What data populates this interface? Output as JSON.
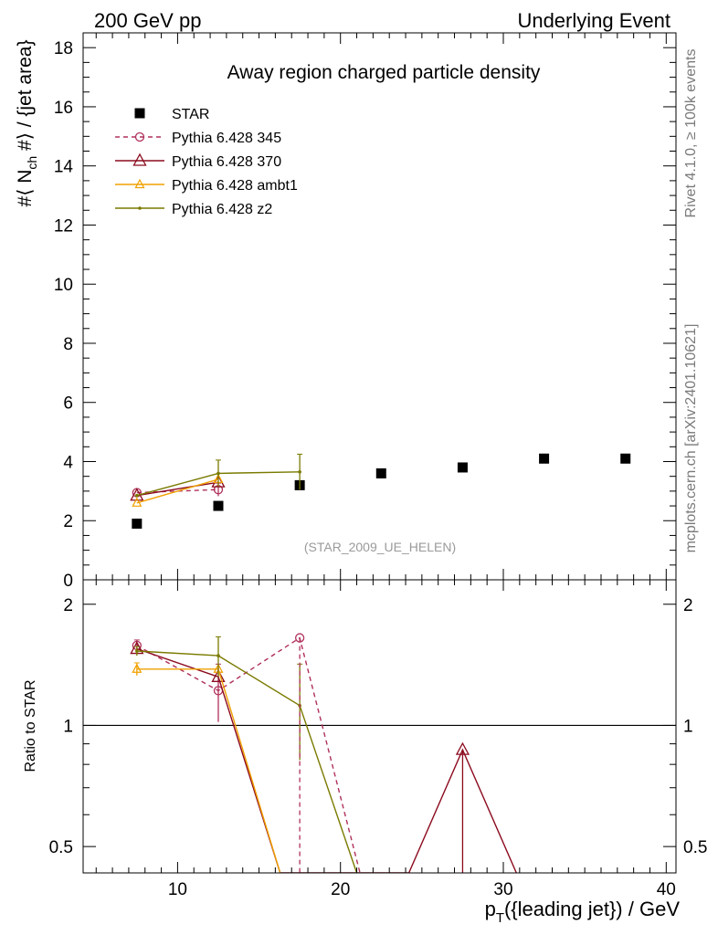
{
  "header": {
    "left": "200 GeV pp",
    "right": "Underlying Event"
  },
  "side_text": {
    "rivet": "Rivet 4.1.0, ≥ 100k events",
    "site": "mcplots.cern.ch [arXiv:2401.10621]"
  },
  "chart_data": {
    "type": "line",
    "title": "Away region charged particle density",
    "analysis_tag": "(STAR_2009_UE_HELEN)",
    "xlabel": "p_T({leading jet}) / GeV",
    "ylabel": "#⟨ N_ch #⟩ / {jet area}",
    "ratio_ylabel": "Ratio to STAR",
    "xlim": [
      4.2,
      40.6
    ],
    "ylim": [
      0,
      18.5
    ],
    "ratio_ylim": [
      0.43,
      2.3
    ],
    "ratio_log_scale": true,
    "x_ticks": [
      "10",
      "20",
      "30",
      "40"
    ],
    "y_ticks": [
      "0",
      "2",
      "4",
      "6",
      "8",
      "10",
      "12",
      "14",
      "16",
      "18"
    ],
    "ratio_ticks": [
      "0.5",
      "1",
      "2"
    ],
    "legend_position": "top-left",
    "series": [
      {
        "name": "STAR",
        "style": "data",
        "color": "#000000",
        "x": [
          7.5,
          12.5,
          17.5,
          22.5,
          27.5,
          32.5,
          37.5
        ],
        "y": [
          1.9,
          2.5,
          3.2,
          3.6,
          3.8,
          4.1,
          4.1
        ]
      },
      {
        "name": "Pythia 6.428 345",
        "style": "dashed-circle",
        "color": "#b0305a",
        "x": [
          7.5,
          12.5
        ],
        "y": [
          2.95,
          3.05
        ],
        "ratio_x": [
          7.5,
          12.5,
          17.5,
          21.2
        ],
        "ratio_y": [
          1.58,
          1.22,
          1.65,
          0.43
        ]
      },
      {
        "name": "Pythia 6.428 370",
        "style": "solid-triangle",
        "color": "#8b0a1e",
        "x": [
          7.5,
          12.5
        ],
        "y": [
          2.85,
          3.3
        ],
        "ratio_x": [
          7.5,
          12.5,
          16.3,
          24.2,
          27.5,
          30.8
        ],
        "ratio_y": [
          1.55,
          1.32,
          0.43,
          0.43,
          0.87,
          0.43
        ]
      },
      {
        "name": "Pythia 6.428 ambt1",
        "style": "solid-triangle-small",
        "color": "#f0a000",
        "x": [
          7.5,
          12.5
        ],
        "y": [
          2.6,
          3.4
        ],
        "ratio_x": [
          7.5,
          12.5,
          16.3
        ],
        "ratio_y": [
          1.38,
          1.38,
          0.43
        ]
      },
      {
        "name": "Pythia 6.428 z2",
        "style": "solid-dot",
        "color": "#7a7a00",
        "x": [
          7.5,
          12.5,
          17.5
        ],
        "y": [
          2.85,
          3.6,
          3.65
        ],
        "ratio_x": [
          7.5,
          12.5,
          17.5,
          21.0
        ],
        "ratio_y": [
          1.53,
          1.49,
          1.12,
          0.43
        ]
      }
    ]
  }
}
